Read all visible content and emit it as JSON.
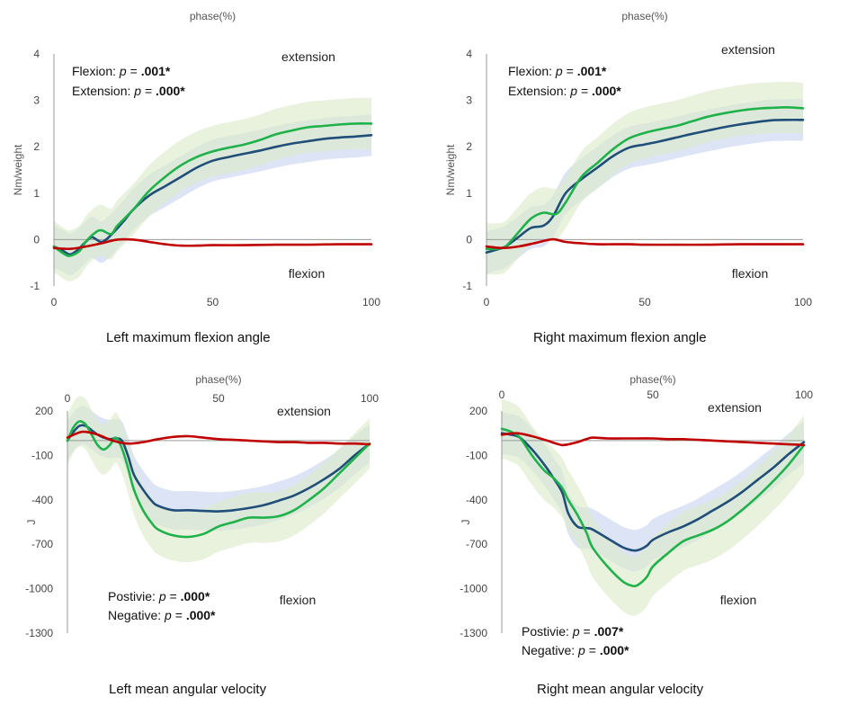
{
  "chart_data": [
    {
      "type": "line",
      "caption": "Left maximum flexion angle",
      "xlabel": "phase(%)",
      "ylabel": "Nm/weight",
      "x_ticks": [
        "0",
        "50",
        "100"
      ],
      "y_ticks": [
        "4",
        "3",
        "2",
        "1",
        "0",
        "-1"
      ],
      "xlim": [
        0,
        100
      ],
      "ylim": [
        -1,
        4
      ],
      "extension_label": "extension",
      "flexion_label": "flexion",
      "stats": [
        {
          "prefix": "Flexion: ",
          "p": "p",
          "eq": " = ",
          "value": ".001*"
        },
        {
          "prefix": "Extension: ",
          "p": "p",
          "eq": " = ",
          "value": ".000*"
        }
      ],
      "colors": {
        "blue": "#1f4e79",
        "green": "#1fb24a",
        "red": "#c00000",
        "blue_band": "#c9d6f0",
        "green_band": "#dcebcb"
      },
      "series": [
        {
          "color_key": "blue",
          "x": [
            0,
            3,
            5,
            7,
            10,
            12,
            15,
            18,
            22,
            25,
            30,
            35,
            40,
            45,
            50,
            55,
            60,
            65,
            70,
            75,
            80,
            85,
            90,
            95,
            100
          ],
          "y": [
            -0.15,
            -0.25,
            -0.32,
            -0.25,
            -0.05,
            0.05,
            -0.05,
            0.1,
            0.4,
            0.65,
            0.95,
            1.15,
            1.35,
            1.55,
            1.7,
            1.78,
            1.85,
            1.92,
            2.0,
            2.07,
            2.12,
            2.17,
            2.2,
            2.22,
            2.25
          ],
          "band": 0.45,
          "band_color_key": "blue_band"
        },
        {
          "color_key": "green",
          "x": [
            0,
            3,
            5,
            8,
            10,
            13,
            15,
            18,
            20,
            25,
            30,
            35,
            40,
            45,
            50,
            55,
            60,
            65,
            70,
            75,
            80,
            85,
            90,
            95,
            100
          ],
          "y": [
            -0.15,
            -0.3,
            -0.35,
            -0.25,
            -0.05,
            0.15,
            0.2,
            0.12,
            0.3,
            0.65,
            1.05,
            1.35,
            1.6,
            1.78,
            1.9,
            1.98,
            2.05,
            2.15,
            2.27,
            2.35,
            2.42,
            2.45,
            2.48,
            2.5,
            2.5
          ],
          "band": 0.55,
          "band_color_key": "green_band"
        },
        {
          "color_key": "red",
          "x": [
            0,
            5,
            10,
            15,
            20,
            25,
            30,
            35,
            40,
            45,
            50,
            60,
            70,
            80,
            90,
            100
          ],
          "y": [
            -0.18,
            -0.2,
            -0.15,
            -0.08,
            0.0,
            0.0,
            -0.05,
            -0.1,
            -0.13,
            -0.13,
            -0.12,
            -0.12,
            -0.11,
            -0.11,
            -0.1,
            -0.1
          ]
        }
      ]
    },
    {
      "type": "line",
      "caption": "Right maximum flexion angle",
      "xlabel": "phase(%)",
      "ylabel": "Nm/weight",
      "x_ticks": [
        "0",
        "50",
        "100"
      ],
      "y_ticks": [
        "4",
        "3",
        "2",
        "1",
        "0",
        "-1"
      ],
      "xlim": [
        0,
        100
      ],
      "ylim": [
        -1,
        4
      ],
      "extension_label": "extension",
      "flexion_label": "flexion",
      "stats": [
        {
          "prefix": "Flexion: ",
          "p": "p",
          "eq": " = ",
          "value": ".001*"
        },
        {
          "prefix": "Extension: ",
          "p": "p",
          "eq": " = ",
          "value": ".000*"
        }
      ],
      "colors": {
        "blue": "#1f4e79",
        "green": "#1fb24a",
        "red": "#c00000",
        "blue_band": "#c9d6f0",
        "green_band": "#dcebcb"
      },
      "series": [
        {
          "color_key": "blue",
          "x": [
            0,
            3,
            6,
            10,
            14,
            18,
            21,
            25,
            30,
            35,
            40,
            45,
            50,
            55,
            60,
            65,
            70,
            75,
            80,
            85,
            90,
            95,
            100
          ],
          "y": [
            -0.28,
            -0.22,
            -0.15,
            0.05,
            0.25,
            0.3,
            0.5,
            1.0,
            1.3,
            1.55,
            1.8,
            1.98,
            2.05,
            2.12,
            2.2,
            2.28,
            2.35,
            2.42,
            2.48,
            2.53,
            2.57,
            2.58,
            2.58
          ],
          "band": 0.45,
          "band_color_key": "blue_band"
        },
        {
          "color_key": "green",
          "x": [
            0,
            3,
            6,
            10,
            14,
            18,
            22,
            25,
            30,
            35,
            40,
            45,
            50,
            55,
            60,
            65,
            70,
            75,
            80,
            85,
            90,
            95,
            100
          ],
          "y": [
            -0.2,
            -0.2,
            -0.15,
            0.15,
            0.45,
            0.58,
            0.55,
            0.8,
            1.35,
            1.65,
            1.95,
            2.18,
            2.3,
            2.38,
            2.45,
            2.55,
            2.65,
            2.72,
            2.78,
            2.82,
            2.84,
            2.85,
            2.83
          ],
          "band": 0.55,
          "band_color_key": "green_band"
        },
        {
          "color_key": "red",
          "x": [
            0,
            5,
            10,
            15,
            20,
            22,
            25,
            30,
            35,
            40,
            45,
            50,
            60,
            70,
            80,
            90,
            100
          ],
          "y": [
            -0.15,
            -0.18,
            -0.15,
            -0.08,
            0.0,
            0.0,
            -0.05,
            -0.08,
            -0.1,
            -0.1,
            -0.1,
            -0.11,
            -0.11,
            -0.11,
            -0.1,
            -0.1,
            -0.1
          ]
        }
      ]
    },
    {
      "type": "line",
      "caption": "Left mean angular velocity",
      "xlabel": "phase(%)",
      "ylabel": "J",
      "x_ticks": [
        "0",
        "50",
        "100"
      ],
      "y_ticks": [
        "200",
        "-100",
        "-400",
        "-700",
        "-1000",
        "-1300"
      ],
      "xlim": [
        0,
        100
      ],
      "ylim": [
        -1300,
        200
      ],
      "extension_label": "extension",
      "flexion_label": "flexion",
      "stats": [
        {
          "prefix": "Postivie: ",
          "p": "p",
          "eq": " = ",
          "value": ".000*"
        },
        {
          "prefix": "Negative: ",
          "p": "p",
          "eq": " = ",
          "value": ".000*"
        }
      ],
      "colors": {
        "blue": "#1f4e79",
        "green": "#1fb24a",
        "red": "#c00000",
        "blue_band": "#c9d6f0",
        "green_band": "#dcebcb"
      },
      "series": [
        {
          "color_key": "blue",
          "x": [
            0,
            2,
            4,
            6,
            8,
            10,
            12,
            14,
            16,
            18,
            20,
            22,
            25,
            28,
            30,
            35,
            40,
            45,
            50,
            55,
            60,
            65,
            70,
            75,
            80,
            85,
            90,
            95,
            100
          ],
          "y": [
            0,
            60,
            100,
            100,
            70,
            40,
            20,
            10,
            15,
            0,
            -100,
            -230,
            -330,
            -410,
            -440,
            -470,
            -470,
            -475,
            -478,
            -470,
            -455,
            -435,
            -405,
            -370,
            -320,
            -260,
            -190,
            -100,
            -20
          ],
          "band": 130,
          "band_color_key": "blue_band"
        },
        {
          "color_key": "green",
          "x": [
            0,
            2,
            4,
            6,
            8,
            10,
            12,
            14,
            16,
            18,
            20,
            22,
            25,
            28,
            30,
            35,
            40,
            45,
            50,
            55,
            60,
            65,
            70,
            75,
            80,
            85,
            90,
            95,
            100
          ],
          "y": [
            0,
            90,
            130,
            110,
            40,
            -30,
            -60,
            -30,
            20,
            -50,
            -180,
            -330,
            -470,
            -560,
            -600,
            -640,
            -650,
            -630,
            -580,
            -550,
            -520,
            -520,
            -510,
            -470,
            -400,
            -320,
            -220,
            -120,
            -20
          ],
          "band": 170,
          "band_color_key": "green_band"
        },
        {
          "color_key": "red",
          "x": [
            0,
            5,
            10,
            15,
            20,
            25,
            30,
            35,
            40,
            45,
            50,
            55,
            60,
            65,
            70,
            75,
            80,
            85,
            90,
            95,
            100
          ],
          "y": [
            20,
            60,
            40,
            0,
            -20,
            -10,
            10,
            25,
            30,
            20,
            10,
            5,
            0,
            -5,
            -10,
            -10,
            -15,
            -15,
            -20,
            -20,
            -25
          ]
        }
      ]
    },
    {
      "type": "line",
      "caption": "Right mean angular velocity",
      "xlabel": "phase(%)",
      "ylabel": "J",
      "x_ticks": [
        "0",
        "50",
        "100"
      ],
      "y_ticks": [
        "200",
        "-100",
        "-400",
        "-700",
        "-1000",
        "-1300"
      ],
      "xlim": [
        0,
        100
      ],
      "ylim": [
        -1300,
        200
      ],
      "extension_label": "extension",
      "flexion_label": "flexion",
      "stats": [
        {
          "prefix": "Postivie: ",
          "p": "p",
          "eq": " = ",
          "value": ".007*"
        },
        {
          "prefix": "Negative: ",
          "p": "p",
          "eq": " = ",
          "value": ".000*"
        }
      ],
      "colors": {
        "blue": "#1f4e79",
        "green": "#1fb24a",
        "red": "#c00000",
        "blue_band": "#c9d6f0",
        "green_band": "#dcebcb"
      },
      "series": [
        {
          "color_key": "blue",
          "x": [
            0,
            3,
            6,
            10,
            14,
            17,
            20,
            22,
            25,
            28,
            30,
            35,
            40,
            43,
            45,
            48,
            50,
            55,
            60,
            65,
            70,
            75,
            80,
            85,
            90,
            95,
            100
          ],
          "y": [
            50,
            40,
            20,
            -60,
            -160,
            -250,
            -350,
            -490,
            -580,
            -590,
            -600,
            -660,
            -720,
            -740,
            -740,
            -710,
            -670,
            -620,
            -580,
            -530,
            -470,
            -410,
            -340,
            -260,
            -180,
            -90,
            -10
          ],
          "band": 140,
          "band_color_key": "blue_band"
        },
        {
          "color_key": "green",
          "x": [
            0,
            3,
            6,
            10,
            14,
            17,
            20,
            22,
            25,
            28,
            30,
            35,
            40,
            43,
            45,
            48,
            50,
            55,
            60,
            65,
            70,
            75,
            80,
            85,
            90,
            95,
            100
          ],
          "y": [
            80,
            60,
            20,
            -100,
            -200,
            -250,
            -320,
            -400,
            -500,
            -620,
            -720,
            -850,
            -950,
            -980,
            -975,
            -920,
            -850,
            -760,
            -680,
            -640,
            -600,
            -540,
            -460,
            -370,
            -270,
            -160,
            -30
          ],
          "band": 200,
          "band_color_key": "green_band"
        },
        {
          "color_key": "red",
          "x": [
            0,
            5,
            10,
            15,
            18,
            20,
            22,
            25,
            28,
            30,
            35,
            40,
            45,
            50,
            55,
            60,
            65,
            70,
            75,
            80,
            85,
            90,
            95,
            100
          ],
          "y": [
            40,
            50,
            30,
            0,
            -20,
            -30,
            -25,
            -10,
            10,
            20,
            15,
            15,
            15,
            15,
            10,
            10,
            5,
            0,
            -5,
            -10,
            -15,
            -20,
            -25,
            -30
          ]
        }
      ]
    }
  ]
}
